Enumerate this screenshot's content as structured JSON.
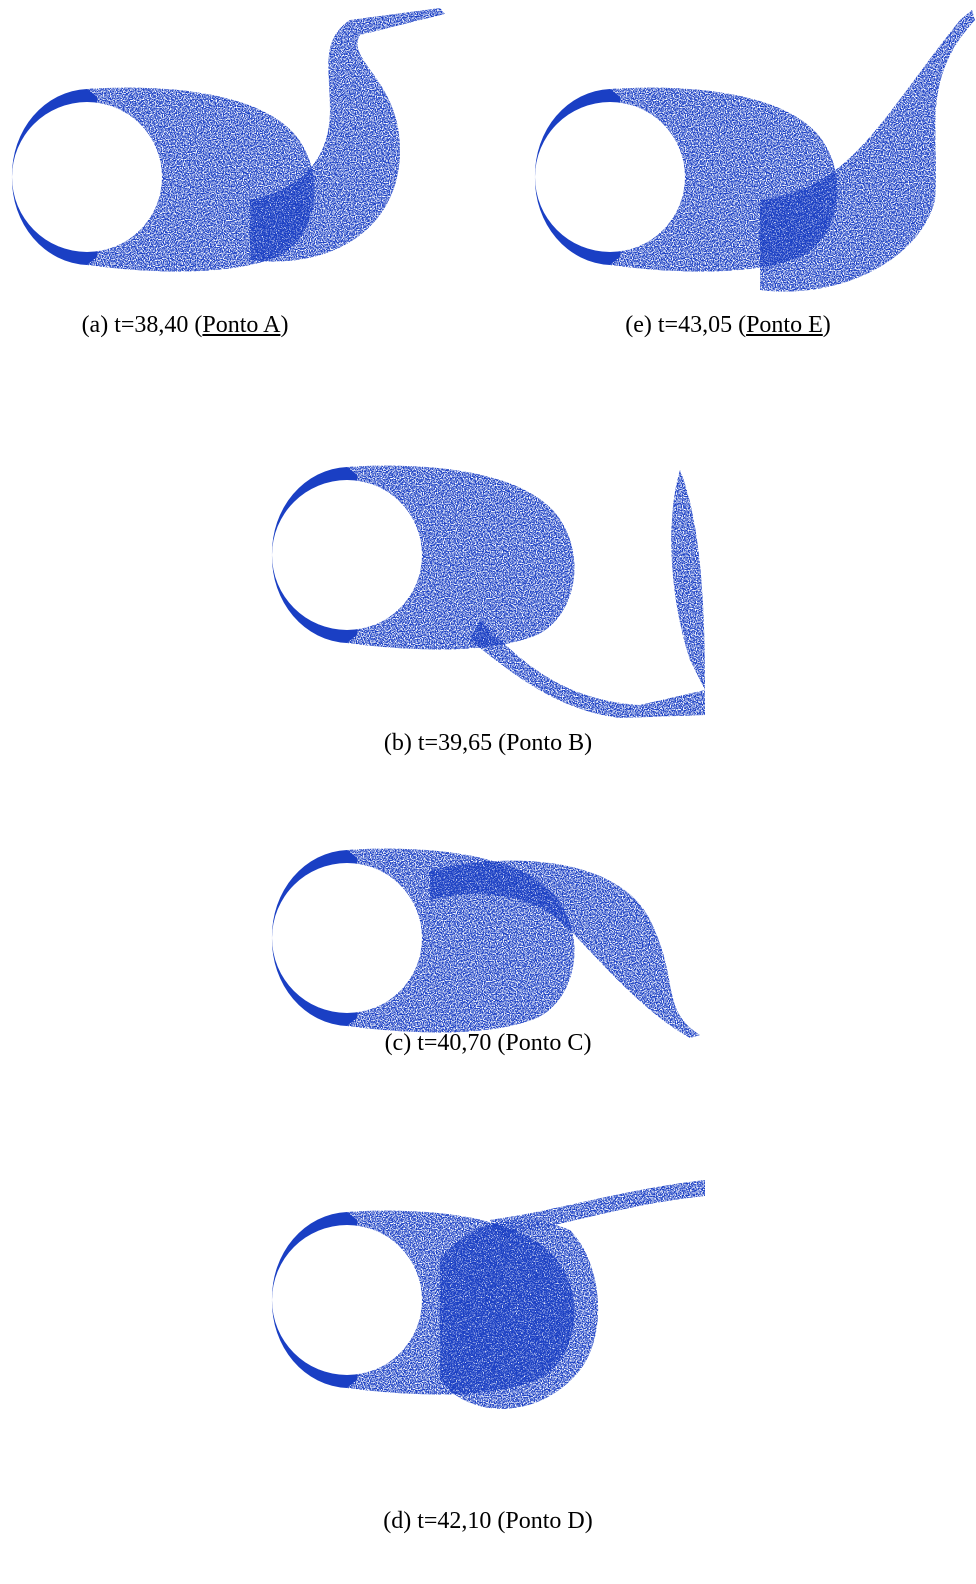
{
  "panels": [
    {
      "prefix": "(a) t=38,40 (",
      "point": "Ponto A",
      "suffix": ")",
      "underlined": true
    },
    {
      "prefix": "(e) t=43,05 (",
      "point": "Ponto E",
      "suffix": ")",
      "underlined": true
    },
    {
      "prefix": "(b) t=39,65 (",
      "point": "Ponto B",
      "suffix": ")",
      "underlined": false
    },
    {
      "prefix": "(c) t=40,70 (",
      "point": "Ponto C",
      "suffix": ")",
      "underlined": false
    },
    {
      "prefix": "(d) t=42,10 (",
      "point": "Ponto D",
      "suffix": ")",
      "underlined": false
    }
  ]
}
